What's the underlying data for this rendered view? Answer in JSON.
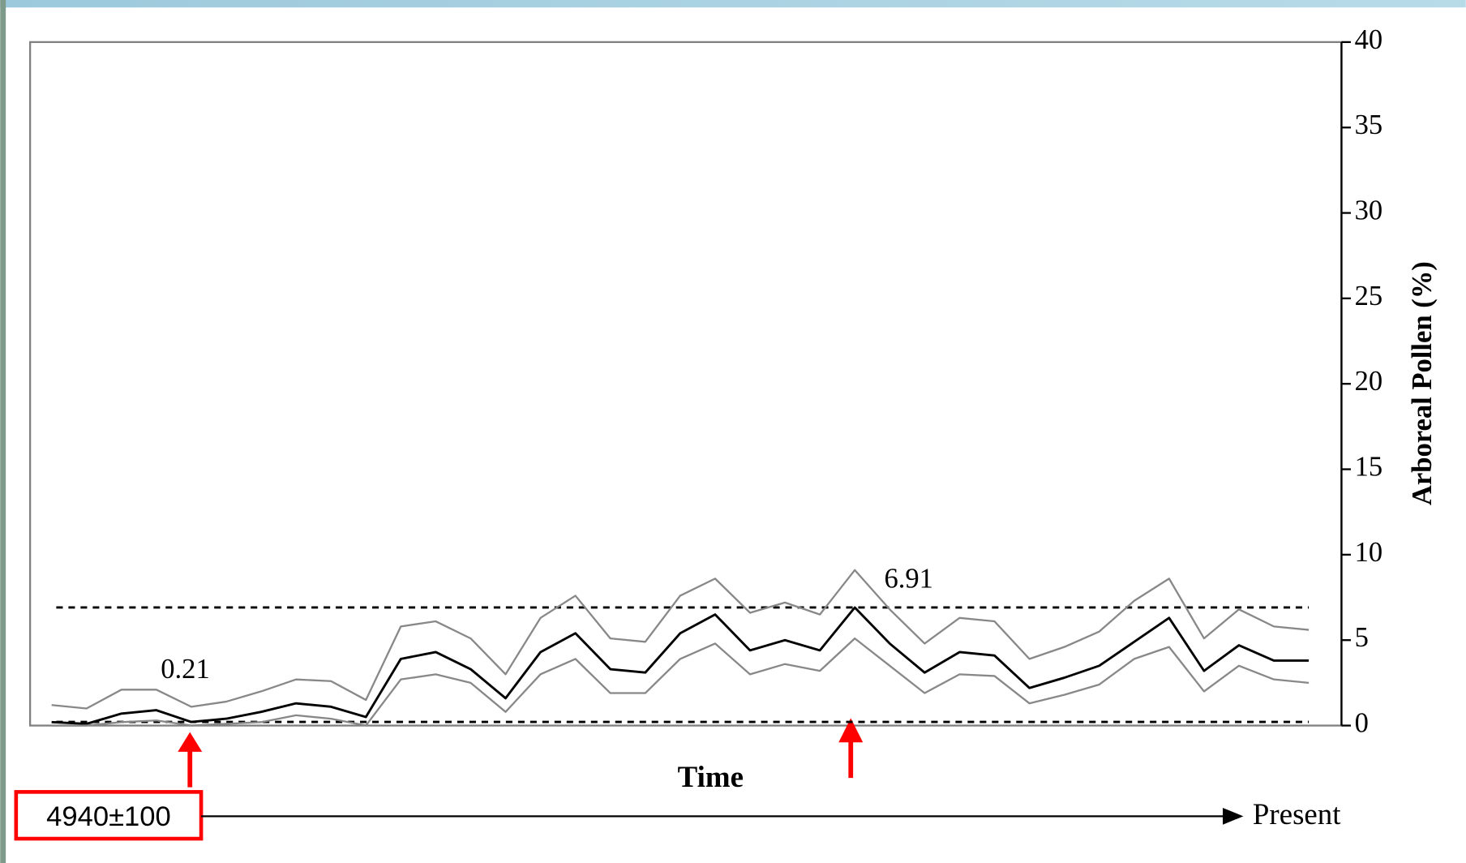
{
  "chart_data": {
    "type": "line",
    "xlabel": "Time",
    "ylabel": "Arboreal Pollen (%)",
    "categories": [
      null,
      null,
      null,
      null,
      null,
      null,
      null,
      null,
      null,
      null,
      null,
      null,
      null,
      null,
      null,
      null,
      null,
      null,
      null,
      null,
      null,
      null,
      null,
      null,
      null,
      null,
      null,
      null,
      null,
      null,
      null,
      null,
      null,
      null,
      null,
      null,
      null
    ],
    "series": [
      {
        "color": "#888888",
        "values": [
          1.2,
          1.0,
          2.1,
          2.1,
          1.1,
          1.4,
          2.0,
          2.7,
          2.6,
          1.5,
          5.8,
          6.1,
          5.1,
          3.0,
          6.3,
          7.6,
          5.1,
          4.9,
          7.6,
          8.6,
          6.6,
          7.2,
          6.5,
          9.1,
          6.8,
          4.8,
          6.3,
          6.1,
          3.9,
          4.6,
          5.5,
          7.3,
          8.6,
          5.1,
          6.8,
          5.8,
          5.6
        ]
      },
      {
        "color": "#000000",
        "values": [
          0.2,
          0.1,
          0.7,
          0.9,
          0.21,
          0.4,
          0.8,
          1.3,
          1.1,
          0.5,
          3.9,
          4.3,
          3.3,
          1.6,
          4.3,
          5.4,
          3.3,
          3.1,
          5.4,
          6.5,
          4.4,
          5.0,
          4.4,
          6.91,
          4.8,
          3.1,
          4.3,
          4.1,
          2.2,
          2.8,
          3.5,
          4.9,
          6.3,
          3.2,
          4.7,
          3.8,
          3.8
        ]
      },
      {
        "color": "#888888",
        "values": [
          0.0,
          0.0,
          0.2,
          0.3,
          0.0,
          0.1,
          0.2,
          0.6,
          0.4,
          0.0,
          2.7,
          3.0,
          2.5,
          0.8,
          3.0,
          3.9,
          1.9,
          1.9,
          3.9,
          4.8,
          3.0,
          3.6,
          3.2,
          5.1,
          3.5,
          1.9,
          3.0,
          2.9,
          1.3,
          1.8,
          2.4,
          3.9,
          4.6,
          2.0,
          3.5,
          2.7,
          2.5
        ]
      }
    ],
    "reference_lines": [
      6.91,
      0.21
    ],
    "ylim": [
      0,
      40
    ],
    "yticks": [
      0,
      5,
      10,
      15,
      20,
      25,
      30,
      35,
      40
    ],
    "timeline": {
      "start": "4940±100",
      "end": "Present"
    }
  }
}
